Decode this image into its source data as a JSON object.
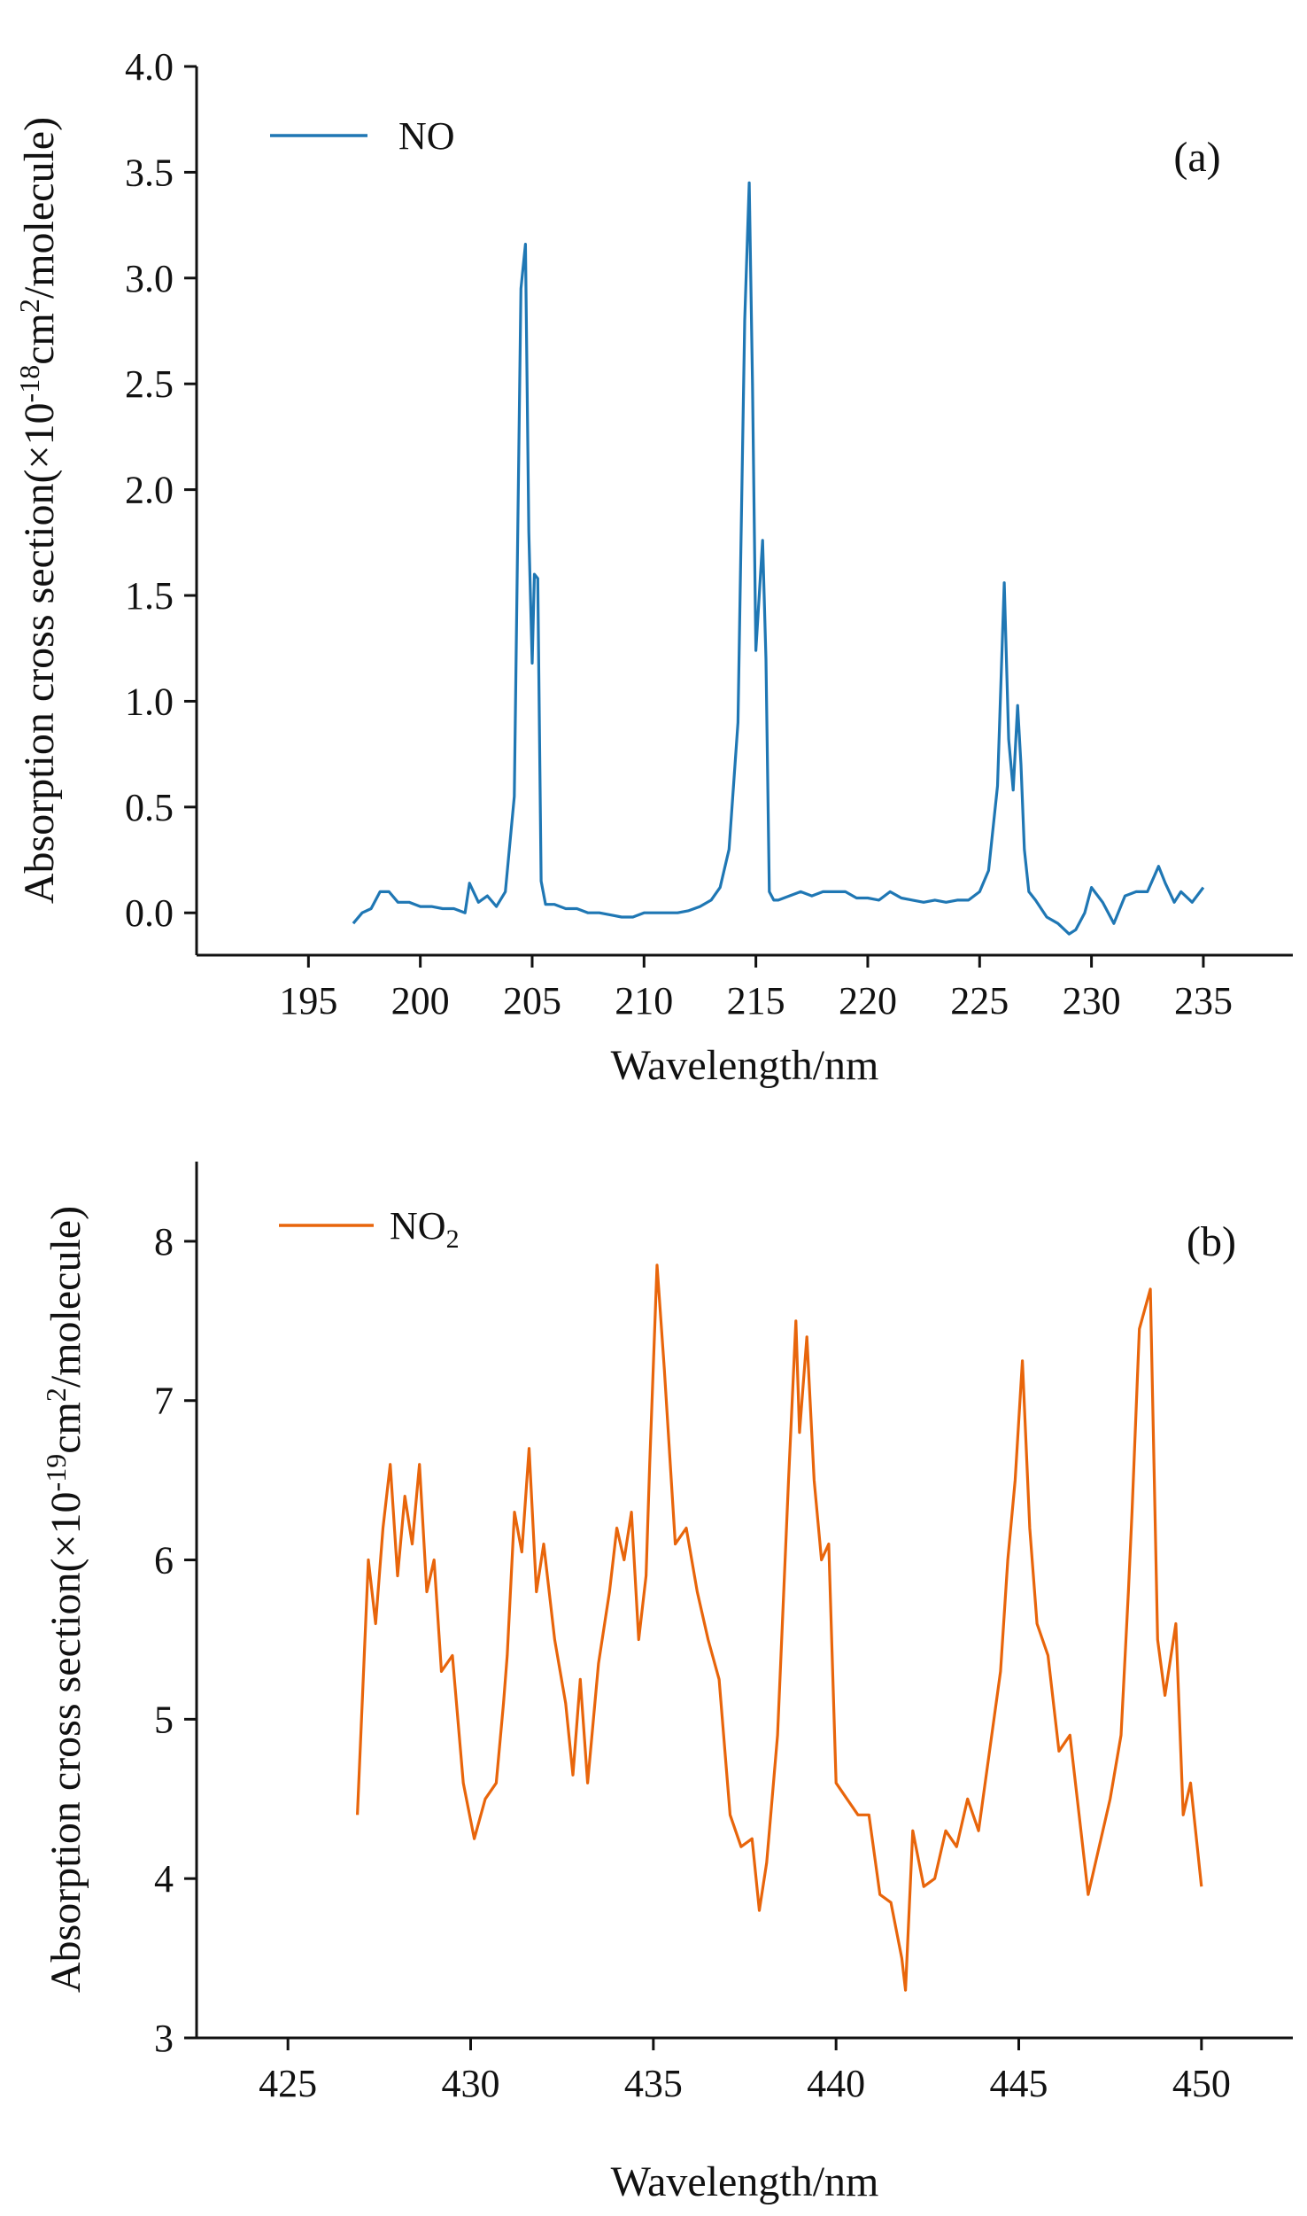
{
  "chart_data": [
    {
      "type": "line",
      "panel_label": "(a)",
      "xlabel": "Wavelength/nm",
      "ylabel": "Absorption cross section(×10-18cm2/molecule)",
      "ylabel_parts": {
        "pre": "Absorption cross section(×10",
        "sup1": "-18",
        "mid": "cm",
        "sup2": "2",
        "post": "/molecule)"
      },
      "xlim": [
        190,
        239
      ],
      "ylim": [
        -0.2,
        4.0
      ],
      "xticks": [
        195,
        200,
        205,
        210,
        215,
        220,
        225,
        230,
        235
      ],
      "xtick_labels": [
        "195",
        "200",
        "205",
        "210",
        "215",
        "220",
        "225",
        "230",
        "235"
      ],
      "yticks": [
        0.0,
        0.5,
        1.0,
        1.5,
        2.0,
        2.5,
        3.0,
        3.5,
        4.0
      ],
      "ytick_labels": [
        "0.0",
        "0.5",
        "1.0",
        "1.5",
        "2.0",
        "2.5",
        "3.0",
        "3.5",
        "4.0"
      ],
      "grid": false,
      "legend_position": "top-left",
      "series": [
        {
          "name": "NO",
          "name_parts": {
            "main": "NO",
            "sub": ""
          },
          "color": "#1f77b4",
          "x": [
            197.0,
            197.4,
            197.8,
            198.2,
            198.6,
            199.0,
            199.5,
            200.0,
            200.5,
            201.0,
            201.5,
            202.0,
            202.2,
            202.6,
            203.0,
            203.4,
            203.8,
            204.2,
            204.5,
            204.7,
            204.85,
            205.0,
            205.1,
            205.25,
            205.4,
            205.6,
            206.0,
            206.5,
            207.0,
            207.5,
            208.0,
            208.5,
            209.0,
            209.5,
            210.0,
            210.5,
            211.0,
            211.5,
            212.0,
            212.5,
            213.0,
            213.4,
            213.8,
            214.2,
            214.5,
            214.7,
            214.85,
            215.0,
            215.15,
            215.3,
            215.45,
            215.6,
            215.8,
            216.0,
            216.5,
            217.0,
            217.5,
            218.0,
            218.5,
            219.0,
            219.5,
            220.0,
            220.5,
            221.0,
            221.5,
            222.0,
            222.5,
            223.0,
            223.5,
            224.0,
            224.5,
            225.0,
            225.4,
            225.8,
            226.1,
            226.3,
            226.5,
            226.7,
            226.85,
            227.0,
            227.2,
            227.5,
            228.0,
            228.5,
            229.0,
            229.3,
            229.7,
            230.0,
            230.5,
            231.0,
            231.5,
            232.0,
            232.5,
            233.0,
            233.3,
            233.7,
            234.0,
            234.5,
            235.0
          ],
          "y": [
            -0.05,
            0.0,
            0.02,
            0.1,
            0.1,
            0.05,
            0.05,
            0.03,
            0.03,
            0.02,
            0.02,
            0.0,
            0.14,
            0.05,
            0.08,
            0.03,
            0.1,
            0.55,
            2.95,
            3.16,
            1.8,
            1.18,
            1.6,
            1.58,
            0.15,
            0.04,
            0.04,
            0.02,
            0.02,
            0.0,
            0.0,
            -0.01,
            -0.02,
            -0.02,
            0.0,
            0.0,
            0.0,
            0.0,
            0.01,
            0.03,
            0.06,
            0.12,
            0.3,
            0.9,
            2.8,
            3.45,
            2.5,
            1.24,
            1.5,
            1.76,
            1.2,
            0.1,
            0.06,
            0.06,
            0.08,
            0.1,
            0.08,
            0.1,
            0.1,
            0.1,
            0.07,
            0.07,
            0.06,
            0.1,
            0.07,
            0.06,
            0.05,
            0.06,
            0.05,
            0.06,
            0.06,
            0.1,
            0.2,
            0.6,
            1.56,
            0.82,
            0.58,
            0.98,
            0.7,
            0.3,
            0.1,
            0.06,
            -0.02,
            -0.05,
            -0.1,
            -0.08,
            0.0,
            0.12,
            0.05,
            -0.05,
            0.08,
            0.1,
            0.1,
            0.22,
            0.14,
            0.05,
            0.1,
            0.05,
            0.12
          ]
        }
      ]
    },
    {
      "type": "line",
      "panel_label": "(b)",
      "xlabel": "Wavelength/nm",
      "ylabel": "Absorption cross section(×10-19cm2/molecule)",
      "ylabel_parts": {
        "pre": "Absorption cross section(×10",
        "sup1": "-19",
        "mid": "cm",
        "sup2": "2",
        "post": "/molecule)"
      },
      "xlim": [
        422.5,
        452.5
      ],
      "ylim": [
        3.0,
        8.5
      ],
      "xticks": [
        425,
        430,
        435,
        440,
        445,
        450
      ],
      "xtick_labels": [
        "425",
        "430",
        "435",
        "440",
        "445",
        "450"
      ],
      "yticks": [
        3,
        4,
        5,
        6,
        7,
        8
      ],
      "ytick_labels": [
        "3",
        "4",
        "5",
        "6",
        "7",
        "8"
      ],
      "grid": false,
      "legend_position": "top-left",
      "series": [
        {
          "name": "NO2",
          "name_parts": {
            "main": "NO",
            "sub": "2"
          },
          "color": "#e8650b",
          "x": [
            426.9,
            427.2,
            427.4,
            427.6,
            427.8,
            428.0,
            428.2,
            428.4,
            428.6,
            428.8,
            429.0,
            429.2,
            429.5,
            429.8,
            430.1,
            430.4,
            430.7,
            430.9,
            431.0,
            431.2,
            431.4,
            431.6,
            431.8,
            432.0,
            432.3,
            432.6,
            432.8,
            433.0,
            433.2,
            433.5,
            433.8,
            434.0,
            434.2,
            434.4,
            434.6,
            434.8,
            434.9,
            435.1,
            435.3,
            435.6,
            435.9,
            436.2,
            436.5,
            436.8,
            437.1,
            437.4,
            437.7,
            437.9,
            438.1,
            438.4,
            438.7,
            438.9,
            439.0,
            439.2,
            439.4,
            439.6,
            439.8,
            440.0,
            440.3,
            440.6,
            440.9,
            441.2,
            441.5,
            441.8,
            441.9,
            442.1,
            442.4,
            442.7,
            443.0,
            443.3,
            443.6,
            443.9,
            444.2,
            444.5,
            444.7,
            444.9,
            445.1,
            445.3,
            445.5,
            445.8,
            446.1,
            446.4,
            446.7,
            446.9,
            447.2,
            447.5,
            447.8,
            448.0,
            448.1,
            448.3,
            448.6,
            448.8,
            449.0,
            449.3,
            449.5,
            449.7,
            450.0
          ],
          "y": [
            4.4,
            6.0,
            5.6,
            6.2,
            6.6,
            5.9,
            6.4,
            6.1,
            6.6,
            5.8,
            6.0,
            5.3,
            5.4,
            4.6,
            4.25,
            4.5,
            4.6,
            5.1,
            5.4,
            6.3,
            6.05,
            6.7,
            5.8,
            6.1,
            5.5,
            5.1,
            4.65,
            5.25,
            4.6,
            5.35,
            5.8,
            6.2,
            6.0,
            6.3,
            5.5,
            5.9,
            6.6,
            7.85,
            7.2,
            6.1,
            6.2,
            5.8,
            5.5,
            5.25,
            4.4,
            4.2,
            4.25,
            3.8,
            4.1,
            4.9,
            6.5,
            7.5,
            6.8,
            7.4,
            6.5,
            6.0,
            6.1,
            4.6,
            4.5,
            4.4,
            4.4,
            3.9,
            3.85,
            3.5,
            3.3,
            4.3,
            3.95,
            4.0,
            4.3,
            4.2,
            4.5,
            4.3,
            4.8,
            5.3,
            6.0,
            6.5,
            7.25,
            6.2,
            5.6,
            5.4,
            4.8,
            4.9,
            4.3,
            3.9,
            4.2,
            4.5,
            4.9,
            5.8,
            6.3,
            7.45,
            7.7,
            5.5,
            5.15,
            5.6,
            4.4,
            4.6,
            3.95
          ]
        }
      ]
    }
  ]
}
